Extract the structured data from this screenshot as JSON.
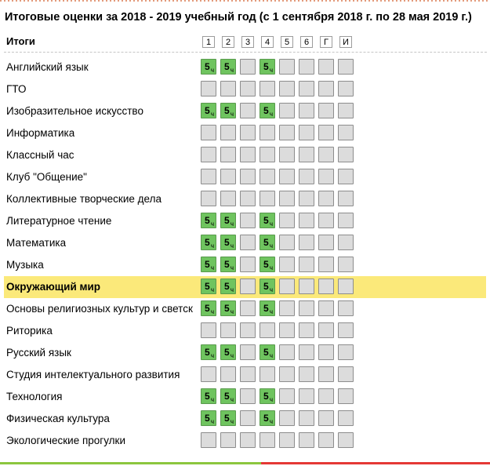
{
  "title": "Итоговые оценки за 2018 - 2019 учебный год (с 1 сентября 2018 г. по 28 мая 2019 г.)",
  "header_label": "Итоги",
  "columns": [
    "1",
    "2",
    "3",
    "4",
    "5",
    "6",
    "Г",
    "И"
  ],
  "grade_suffix": "ч",
  "colors": {
    "grade_green": "#6fc45f",
    "empty_cell": "#dcdcdc",
    "highlight": "#fbe97a",
    "bottom_green": "#8cc63e",
    "bottom_red": "#e53935"
  },
  "rows": [
    {
      "subject": "Английский язык",
      "grades": [
        "5",
        "5",
        "",
        "5",
        "",
        "",
        "",
        ""
      ]
    },
    {
      "subject": "ГТО",
      "grades": [
        "",
        "",
        "",
        "",
        "",
        "",
        "",
        ""
      ]
    },
    {
      "subject": "Изобразительное искусство",
      "grades": [
        "5",
        "5",
        "",
        "5",
        "",
        "",
        "",
        ""
      ]
    },
    {
      "subject": "Информатика",
      "grades": [
        "",
        "",
        "",
        "",
        "",
        "",
        "",
        ""
      ]
    },
    {
      "subject": "Классный час",
      "grades": [
        "",
        "",
        "",
        "",
        "",
        "",
        "",
        ""
      ]
    },
    {
      "subject": "Клуб \"Общение\"",
      "grades": [
        "",
        "",
        "",
        "",
        "",
        "",
        "",
        ""
      ]
    },
    {
      "subject": "Коллективные творческие дела",
      "grades": [
        "",
        "",
        "",
        "",
        "",
        "",
        "",
        ""
      ]
    },
    {
      "subject": "Литературное чтение",
      "grades": [
        "5",
        "5",
        "",
        "5",
        "",
        "",
        "",
        ""
      ]
    },
    {
      "subject": "Математика",
      "grades": [
        "5",
        "5",
        "",
        "5",
        "",
        "",
        "",
        ""
      ]
    },
    {
      "subject": "Музыка",
      "grades": [
        "5",
        "5",
        "",
        "5",
        "",
        "",
        "",
        ""
      ]
    },
    {
      "subject": "Окружающий мир",
      "grades": [
        "5",
        "5",
        "",
        "5",
        "",
        "",
        "",
        ""
      ],
      "selected": true
    },
    {
      "subject": "Основы религиозных культур и светской этики",
      "grades": [
        "5",
        "5",
        "",
        "5",
        "",
        "",
        "",
        ""
      ]
    },
    {
      "subject": "Риторика",
      "grades": [
        "",
        "",
        "",
        "",
        "",
        "",
        "",
        ""
      ]
    },
    {
      "subject": "Русский язык",
      "grades": [
        "5",
        "5",
        "",
        "5",
        "",
        "",
        "",
        ""
      ]
    },
    {
      "subject": "Студия интелектуального развития",
      "grades": [
        "",
        "",
        "",
        "",
        "",
        "",
        "",
        ""
      ]
    },
    {
      "subject": "Технология",
      "grades": [
        "5",
        "5",
        "",
        "5",
        "",
        "",
        "",
        ""
      ]
    },
    {
      "subject": "Физическая культура",
      "grades": [
        "5",
        "5",
        "",
        "5",
        "",
        "",
        "",
        ""
      ]
    },
    {
      "subject": "Экологические прогулки",
      "grades": [
        "",
        "",
        "",
        "",
        "",
        "",
        "",
        ""
      ]
    }
  ]
}
